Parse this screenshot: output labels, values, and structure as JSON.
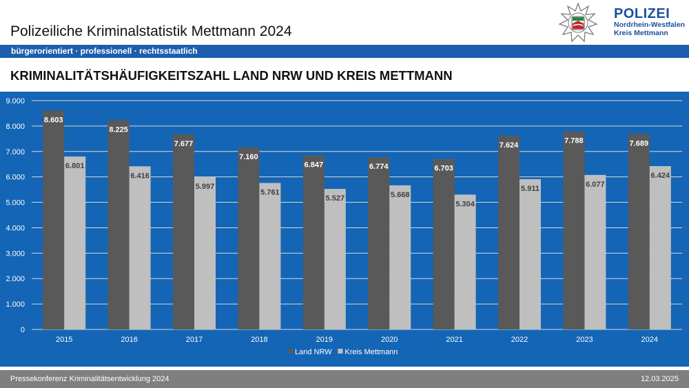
{
  "header": {
    "title": "Polizeiliche Kriminalstatistik Mettmann 2024",
    "logo": {
      "main": "POLIZEI",
      "line1": "Nordrhein-Westfalen",
      "line2": "Kreis Mettmann",
      "icon": "police-star-emblem-icon"
    },
    "tagline": "bürgerorientiert · professionell · rechtsstaatlich"
  },
  "slide": {
    "headline": "KRIMINALITÄTSHÄUFIGKEITSZAHL LAND NRW UND KREIS METTMANN"
  },
  "footer": {
    "left": "Pressekonferenz Kriminalitätsentwicklung 2024",
    "right": "12.03.2025"
  },
  "colors": {
    "brand_blue": "#1b4f9c",
    "chart_background": "#1465b5",
    "series_nrw": "#595959",
    "series_mettmann": "#bfbfbf"
  },
  "chart_data": {
    "type": "bar",
    "categories": [
      "2015",
      "2016",
      "2017",
      "2018",
      "2019",
      "2020",
      "2021",
      "2022",
      "2023",
      "2024"
    ],
    "series": [
      {
        "name": "Land NRW",
        "values": [
          8603,
          8225,
          7677,
          7160,
          6847,
          6774,
          6703,
          7624,
          7788,
          7689
        ]
      },
      {
        "name": "Kreis Mettmann",
        "values": [
          6801,
          6416,
          5997,
          5761,
          5527,
          5668,
          5304,
          5911,
          6077,
          6424
        ]
      }
    ],
    "data_labels": [
      [
        "8.603",
        "8.225",
        "7.677",
        "7.160",
        "6.847",
        "6.774",
        "6.703",
        "7.624",
        "7.788",
        "7.689"
      ],
      [
        "6.801",
        "6.416",
        "5.997",
        "5.761",
        "5.527",
        "5.668",
        "5.304",
        "5.911",
        "6.077",
        "6.424"
      ]
    ],
    "yticks": [
      "0",
      "1.000",
      "2.000",
      "3.000",
      "4.000",
      "5.000",
      "6.000",
      "7.000",
      "8.000",
      "9.000"
    ],
    "ylim": [
      0,
      9000
    ],
    "ystep": 1000,
    "grid": true,
    "legend": "bottom",
    "title": "",
    "xlabel": "",
    "ylabel": ""
  }
}
